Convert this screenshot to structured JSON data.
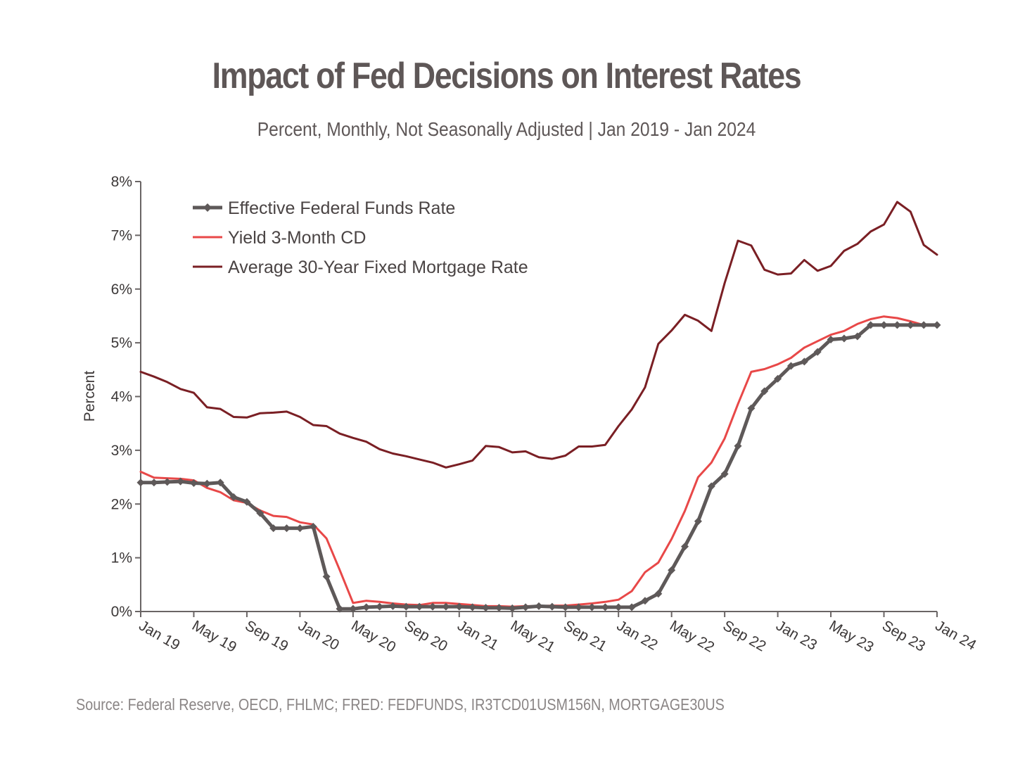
{
  "title": "Impact of Fed Decisions on Interest Rates",
  "subtitle": "Percent, Monthly, Not Seasonally Adjusted | Jan 2019 - Jan 2024",
  "source": "Source: Federal Reserve, OECD, FHLMC; FRED: FEDFUNDS, IR3TCD01USM156N, MORTGAGE30US",
  "chart_data": {
    "type": "line",
    "title": "Impact of Fed Decisions on Interest Rates",
    "subtitle": "Percent, Monthly, Not Seasonally Adjusted | Jan 2019 - Jan 2024",
    "xlabel": "",
    "ylabel": "Percent",
    "ylim": [
      0,
      8
    ],
    "yticks": [
      "0%",
      "1%",
      "2%",
      "3%",
      "4%",
      "5%",
      "6%",
      "7%",
      "8%"
    ],
    "xticks": [
      "Jan 19",
      "May 19",
      "Sep 19",
      "Jan 20",
      "May 20",
      "Sep 20",
      "Jan 21",
      "May 21",
      "Sep 21",
      "Jan 22",
      "May 22",
      "Sep 22",
      "Jan 23",
      "May 23",
      "Sep 23",
      "Jan 24"
    ],
    "x_range": [
      "2019-01",
      "2024-01"
    ],
    "grid": false,
    "legend_position": "top-left",
    "series": [
      {
        "name": "Effective Federal Funds Rate",
        "color": "#5e5959",
        "marker": "diamond",
        "x": [
          "2019-01",
          "2019-02",
          "2019-03",
          "2019-04",
          "2019-05",
          "2019-06",
          "2019-07",
          "2019-08",
          "2019-09",
          "2019-10",
          "2019-11",
          "2019-12",
          "2020-01",
          "2020-02",
          "2020-03",
          "2020-04",
          "2020-05",
          "2020-06",
          "2020-07",
          "2020-08",
          "2020-09",
          "2020-10",
          "2020-11",
          "2020-12",
          "2021-01",
          "2021-02",
          "2021-03",
          "2021-04",
          "2021-05",
          "2021-06",
          "2021-07",
          "2021-08",
          "2021-09",
          "2021-10",
          "2021-11",
          "2021-12",
          "2022-01",
          "2022-02",
          "2022-03",
          "2022-04",
          "2022-05",
          "2022-06",
          "2022-07",
          "2022-08",
          "2022-09",
          "2022-10",
          "2022-11",
          "2022-12",
          "2023-01",
          "2023-02",
          "2023-03",
          "2023-04",
          "2023-05",
          "2023-06",
          "2023-07",
          "2023-08",
          "2023-09",
          "2023-10",
          "2023-11",
          "2023-12",
          "2024-01"
        ],
        "values": [
          2.4,
          2.4,
          2.41,
          2.42,
          2.39,
          2.38,
          2.4,
          2.13,
          2.04,
          1.83,
          1.55,
          1.55,
          1.55,
          1.58,
          0.65,
          0.05,
          0.05,
          0.08,
          0.09,
          0.1,
          0.09,
          0.09,
          0.09,
          0.09,
          0.09,
          0.08,
          0.07,
          0.07,
          0.06,
          0.08,
          0.1,
          0.09,
          0.08,
          0.08,
          0.08,
          0.08,
          0.08,
          0.08,
          0.2,
          0.33,
          0.77,
          1.21,
          1.68,
          2.33,
          2.56,
          3.08,
          3.78,
          4.1,
          4.33,
          4.57,
          4.65,
          4.83,
          5.06,
          5.08,
          5.12,
          5.33,
          5.33,
          5.33,
          5.33,
          5.33,
          5.33
        ]
      },
      {
        "name": "Yield 3-Month CD",
        "color": "#e84848",
        "marker": "none",
        "x": [
          "2019-01",
          "2019-02",
          "2019-03",
          "2019-04",
          "2019-05",
          "2019-06",
          "2019-07",
          "2019-08",
          "2019-09",
          "2019-10",
          "2019-11",
          "2019-12",
          "2020-01",
          "2020-02",
          "2020-03",
          "2020-04",
          "2020-05",
          "2020-06",
          "2020-07",
          "2020-08",
          "2020-09",
          "2020-10",
          "2020-11",
          "2020-12",
          "2021-01",
          "2021-02",
          "2021-03",
          "2021-04",
          "2021-05",
          "2021-06",
          "2021-07",
          "2021-08",
          "2021-09",
          "2021-10",
          "2021-11",
          "2021-12",
          "2022-01",
          "2022-02",
          "2022-03",
          "2022-04",
          "2022-05",
          "2022-06",
          "2022-07",
          "2022-08",
          "2022-09",
          "2022-10",
          "2022-11",
          "2022-12",
          "2023-01",
          "2023-02",
          "2023-03",
          "2023-04",
          "2023-05",
          "2023-06",
          "2023-07",
          "2023-08",
          "2023-09",
          "2023-10",
          "2023-11",
          "2023-12",
          "2024-01"
        ],
        "values": [
          2.6,
          2.49,
          2.48,
          2.47,
          2.44,
          2.3,
          2.22,
          2.07,
          2.02,
          1.88,
          1.78,
          1.76,
          1.66,
          1.62,
          1.36,
          0.77,
          0.16,
          0.2,
          0.18,
          0.15,
          0.13,
          0.12,
          0.16,
          0.16,
          0.14,
          0.12,
          0.1,
          0.1,
          0.09,
          0.1,
          0.1,
          0.11,
          0.11,
          0.13,
          0.15,
          0.18,
          0.22,
          0.38,
          0.73,
          0.91,
          1.35,
          1.87,
          2.5,
          2.77,
          3.22,
          3.86,
          4.46,
          4.51,
          4.6,
          4.72,
          4.91,
          5.03,
          5.15,
          5.22,
          5.35,
          5.44,
          5.49,
          5.46,
          5.4,
          5.33,
          5.33
        ]
      },
      {
        "name": "Average 30-Year Fixed Mortgage Rate",
        "color": "#7a1f24",
        "marker": "none",
        "x": [
          "2019-01",
          "2019-02",
          "2019-03",
          "2019-04",
          "2019-05",
          "2019-06",
          "2019-07",
          "2019-08",
          "2019-09",
          "2019-10",
          "2019-11",
          "2019-12",
          "2020-01",
          "2020-02",
          "2020-03",
          "2020-04",
          "2020-05",
          "2020-06",
          "2020-07",
          "2020-08",
          "2020-09",
          "2020-10",
          "2020-11",
          "2020-12",
          "2021-01",
          "2021-02",
          "2021-03",
          "2021-04",
          "2021-05",
          "2021-06",
          "2021-07",
          "2021-08",
          "2021-09",
          "2021-10",
          "2021-11",
          "2021-12",
          "2022-01",
          "2022-02",
          "2022-03",
          "2022-04",
          "2022-05",
          "2022-06",
          "2022-07",
          "2022-08",
          "2022-09",
          "2022-10",
          "2022-11",
          "2022-12",
          "2023-01",
          "2023-02",
          "2023-03",
          "2023-04",
          "2023-05",
          "2023-06",
          "2023-07",
          "2023-08",
          "2023-09",
          "2023-10",
          "2023-11",
          "2023-12",
          "2024-01"
        ],
        "values": [
          4.46,
          4.37,
          4.27,
          4.14,
          4.07,
          3.8,
          3.77,
          3.62,
          3.61,
          3.69,
          3.7,
          3.72,
          3.62,
          3.47,
          3.45,
          3.31,
          3.23,
          3.16,
          3.02,
          2.94,
          2.89,
          2.83,
          2.77,
          2.68,
          2.74,
          2.81,
          3.08,
          3.06,
          2.96,
          2.98,
          2.87,
          2.84,
          2.9,
          3.07,
          3.07,
          3.1,
          3.45,
          3.76,
          4.17,
          4.98,
          5.23,
          5.52,
          5.41,
          5.22,
          6.11,
          6.9,
          6.81,
          6.36,
          6.27,
          6.29,
          6.54,
          6.34,
          6.43,
          6.71,
          6.84,
          7.07,
          7.2,
          7.62,
          7.44,
          6.82,
          6.64
        ]
      }
    ]
  }
}
